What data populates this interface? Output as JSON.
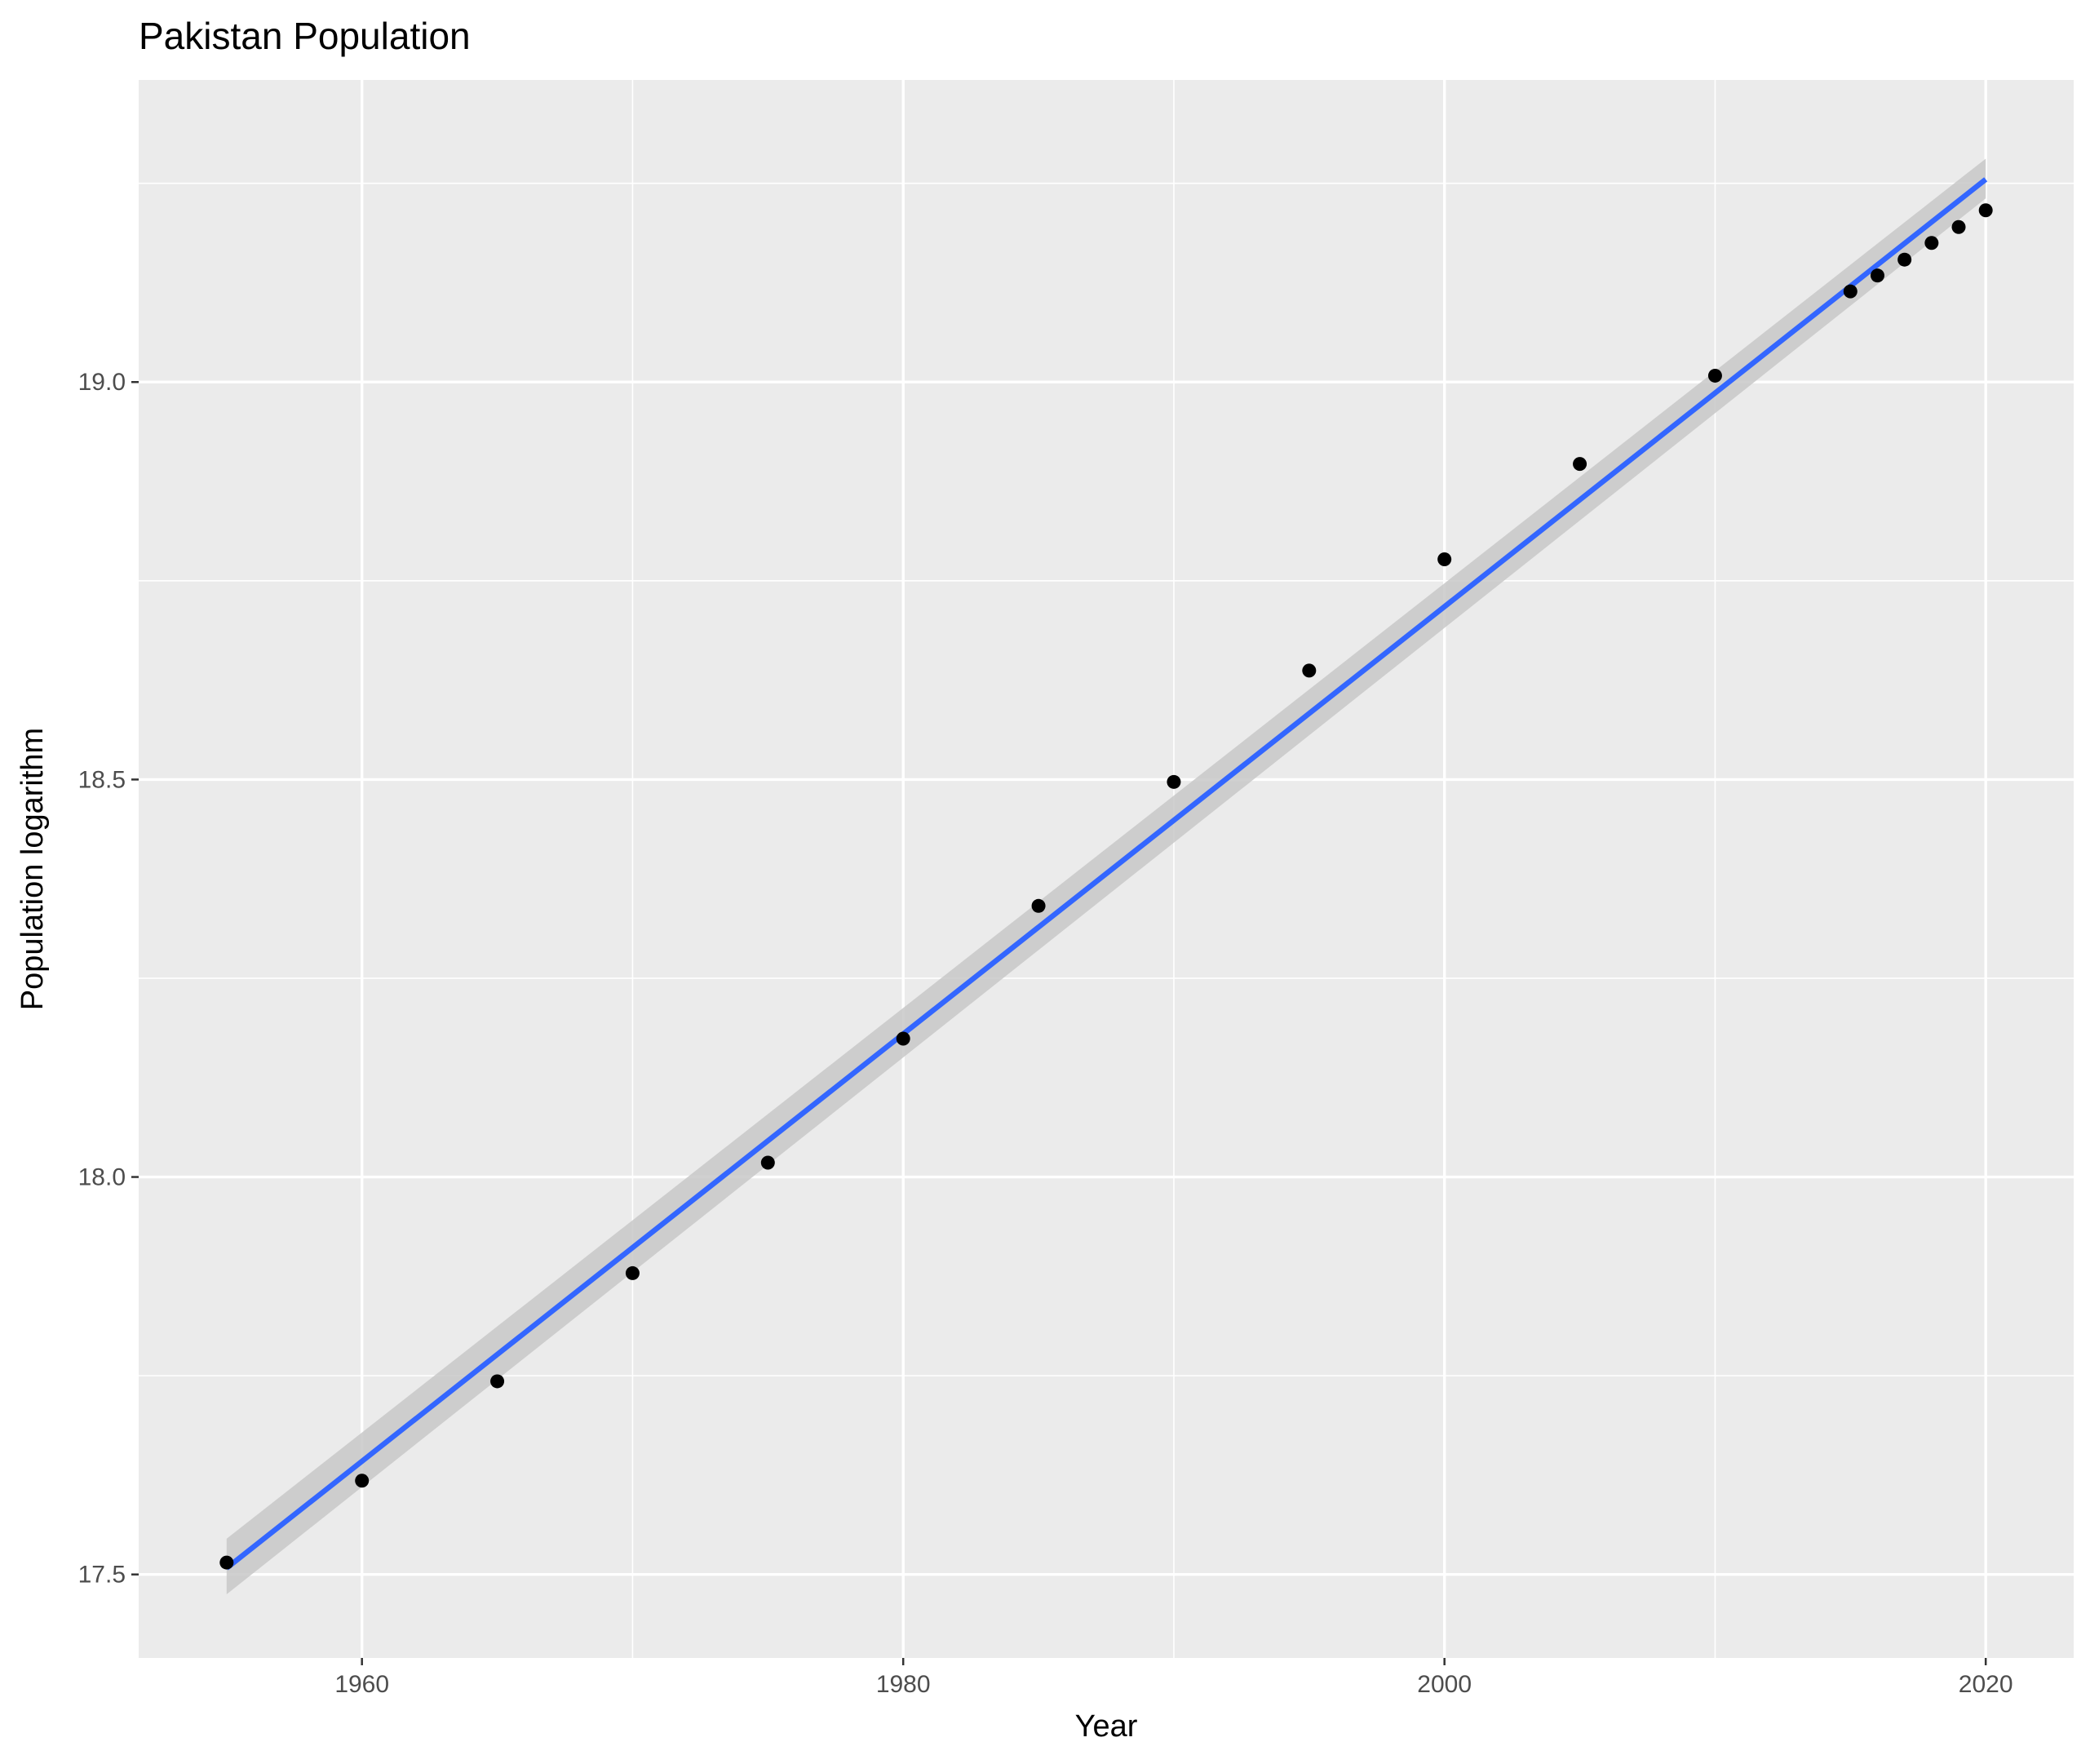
{
  "chart_data": {
    "type": "scatter",
    "title": "Pakistan Population",
    "xlabel": "Year",
    "ylabel": "Population logarithm",
    "xlim": [
      1951.75,
      2023.25
    ],
    "ylim": [
      17.395,
      19.38
    ],
    "x_ticks": [
      1960,
      1980,
      2000,
      2020
    ],
    "y_ticks": [
      17.5,
      18.0,
      18.5,
      19.0
    ],
    "x_tick_labels": [
      "1960",
      "1980",
      "2000",
      "2020"
    ],
    "y_tick_labels": [
      "17.5",
      "18.0",
      "18.5",
      "19.0"
    ],
    "grid": true,
    "legend": "none",
    "points": {
      "x": [
        1955,
        1960,
        1965,
        1970,
        1975,
        1980,
        1985,
        1990,
        1995,
        2000,
        2005,
        2010,
        2015,
        2016,
        2017,
        2018,
        2019,
        2020
      ],
      "y": [
        17.515,
        17.618,
        17.743,
        17.879,
        18.018,
        18.174,
        18.341,
        18.497,
        18.637,
        18.777,
        18.897,
        19.008,
        19.114,
        19.134,
        19.154,
        19.175,
        19.195,
        19.216
      ]
    },
    "trend_line": {
      "method": "linear",
      "x": [
        1955,
        2020
      ],
      "y": [
        17.508,
        19.255
      ],
      "ci_lower": [
        17.475,
        19.231
      ],
      "ci_upper": [
        17.545,
        19.281
      ]
    },
    "colors": {
      "panel": "#EBEBEB",
      "grid": "#FFFFFF",
      "point": "#000000",
      "line": "#3366FF",
      "ribbon": "#C8C8C8"
    }
  }
}
